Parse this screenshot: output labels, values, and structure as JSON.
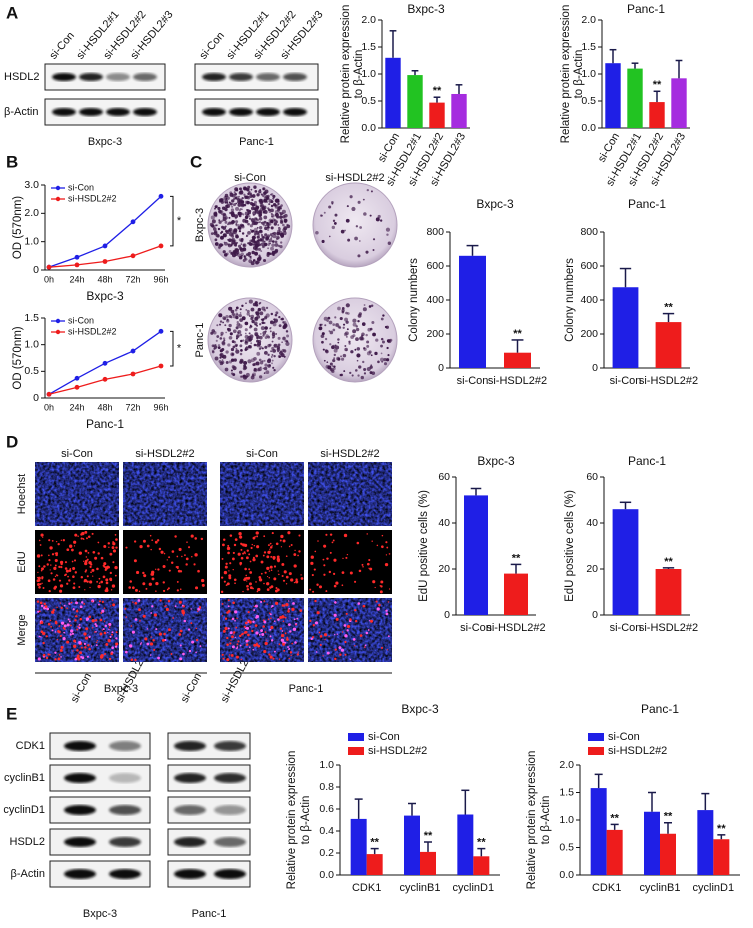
{
  "panel_labels": [
    "A",
    "B",
    "C",
    "D",
    "E"
  ],
  "blots_a": {
    "lanes": [
      "si-Con",
      "si-HSDL2#1",
      "si-HSDL2#2",
      "si-HSDL2#3"
    ],
    "proteins": [
      "HSDL2",
      "β-Actin"
    ],
    "cell_lines": [
      "Bxpc-3",
      "Panc-1"
    ]
  },
  "colony": {
    "conditions": [
      "si-Con",
      "si-HSDL2#2"
    ],
    "cell_lines": [
      "Bxpc-3",
      "Panc-1"
    ]
  },
  "edu": {
    "conditions": [
      "si-Con",
      "si-HSDL2#2"
    ],
    "stains": [
      "Hoechst",
      "EdU",
      "Merge"
    ],
    "cell_lines": [
      "Bxpc-3",
      "Panc-1"
    ]
  },
  "blots_e": {
    "lanes": [
      "si-Con",
      "si-HSDL2#2"
    ],
    "proteins": [
      "CDK1",
      "cyclinB1",
      "cyclinD1",
      "HSDL2",
      "β-Actin"
    ],
    "cell_lines": [
      "Bxpc-3",
      "Panc-1"
    ]
  },
  "chart_data": [
    {
      "type": "bar",
      "title": "Bxpc-3",
      "ylabel": [
        "Relative protein expression",
        "to β-Actin"
      ],
      "categories": [
        "si-Con",
        "si-HSDL2#1",
        "si-HSDL2#2",
        "si-HSDL2#3"
      ],
      "values": [
        1.3,
        0.98,
        0.47,
        0.63
      ],
      "errors": [
        0.5,
        0.08,
        0.1,
        0.17
      ],
      "colors": [
        "#1f1fe6",
        "#22c322",
        "#ee1c1c",
        "#a52cdf"
      ],
      "annotations": [
        null,
        null,
        "**",
        null
      ],
      "ylim": [
        0,
        2
      ],
      "yticks": [
        {
          "value": 0,
          "label": "0.0"
        },
        0.5,
        {
          "value": 1,
          "label": "1.0"
        },
        1.5,
        {
          "value": 2,
          "label": "2.0"
        }
      ]
    },
    {
      "type": "bar",
      "title": "Panc-1",
      "ylabel": [
        "Relative protein expression",
        "to β-Actin"
      ],
      "categories": [
        "si-Con",
        "si-HSDL2#1",
        "si-HSDL2#2",
        "si-HSDL2#3"
      ],
      "values": [
        1.2,
        1.1,
        0.48,
        0.92
      ],
      "errors": [
        0.25,
        0.1,
        0.2,
        0.33
      ],
      "colors": [
        "#1f1fe6",
        "#22c322",
        "#ee1c1c",
        "#a52cdf"
      ],
      "annotations": [
        null,
        null,
        "**",
        null
      ],
      "ylim": [
        0,
        2
      ],
      "yticks": [
        {
          "value": 0,
          "label": "0.0"
        },
        0.5,
        {
          "value": 1,
          "label": "1.0"
        },
        1.5,
        {
          "value": 2,
          "label": "2.0"
        }
      ]
    },
    {
      "type": "line",
      "ylabel": "OD (570nm)",
      "xlabel": "Bxpc-3",
      "annotation": "*",
      "categories": [
        "0h",
        "24h",
        "48h",
        "72h",
        "96h"
      ],
      "series": [
        {
          "name": "si-Con",
          "color": "#1f1fe6",
          "values": [
            0.1,
            0.45,
            0.85,
            1.7,
            2.6
          ]
        },
        {
          "name": "si-HSDL2#2",
          "color": "#ee1c1c",
          "values": [
            0.1,
            0.18,
            0.3,
            0.5,
            0.85
          ]
        }
      ],
      "ylim": [
        0,
        3
      ],
      "yticks": [
        0,
        {
          "value": 1,
          "label": "1.0"
        },
        {
          "value": 2,
          "label": "2.0"
        },
        {
          "value": 3,
          "label": "3.0"
        }
      ]
    },
    {
      "type": "line",
      "ylabel": "OD (570nm)",
      "xlabel": "Panc-1",
      "annotation": "*",
      "categories": [
        "0h",
        "24h",
        "48h",
        "72h",
        "96h"
      ],
      "series": [
        {
          "name": "si-Con",
          "color": "#1f1fe6",
          "values": [
            0.07,
            0.37,
            0.65,
            0.88,
            1.25
          ]
        },
        {
          "name": "si-HSDL2#2",
          "color": "#ee1c1c",
          "values": [
            0.07,
            0.2,
            0.35,
            0.45,
            0.6
          ]
        }
      ],
      "ylim": [
        0,
        1.5
      ],
      "yticks": [
        0,
        0.5,
        {
          "value": 1,
          "label": "1.0"
        },
        1.5
      ]
    },
    {
      "type": "bar",
      "title": "Bxpc-3",
      "ylabel": "Colony numbers",
      "categories": [
        "si-Con",
        "si-HSDL2#2"
      ],
      "values": [
        660,
        90
      ],
      "errors": [
        60,
        75
      ],
      "colors": [
        "#1f1fe6",
        "#ee1c1c"
      ],
      "annotations": [
        null,
        "**"
      ],
      "ylim": [
        0,
        800
      ],
      "yticks": [
        0,
        200,
        400,
        600,
        800
      ]
    },
    {
      "type": "bar",
      "title": "Panc-1",
      "ylabel": "Colony numbers",
      "categories": [
        "si-Con",
        "si-HSDL2#2"
      ],
      "values": [
        475,
        270
      ],
      "errors": [
        110,
        50
      ],
      "colors": [
        "#1f1fe6",
        "#ee1c1c"
      ],
      "annotations": [
        null,
        "**"
      ],
      "ylim": [
        0,
        800
      ],
      "yticks": [
        0,
        200,
        400,
        600,
        800
      ]
    },
    {
      "type": "bar",
      "title": "Bxpc-3",
      "ylabel": "EdU positive cells (%)",
      "categories": [
        "si-Con",
        "si-HSDL2#2"
      ],
      "values": [
        52,
        18
      ],
      "errors": [
        3,
        4
      ],
      "colors": [
        "#1f1fe6",
        "#ee1c1c"
      ],
      "annotations": [
        null,
        "**"
      ],
      "ylim": [
        0,
        60
      ],
      "yticks": [
        0,
        20,
        40,
        60
      ]
    },
    {
      "type": "bar",
      "title": "Panc-1",
      "ylabel": "EdU positive cells (%)",
      "categories": [
        "si-Con",
        "si-HSDL2#2"
      ],
      "values": [
        46,
        20
      ],
      "errors": [
        3,
        0.5
      ],
      "colors": [
        "#1f1fe6",
        "#ee1c1c"
      ],
      "annotations": [
        null,
        "**"
      ],
      "ylim": [
        0,
        60
      ],
      "yticks": [
        0,
        20,
        40,
        60
      ]
    },
    {
      "type": "grouped_bar",
      "title": "Bxpc-3",
      "ylabel": [
        "Relative protein expression",
        "to β-Actin"
      ],
      "categories": [
        "CDK1",
        "cyclinB1",
        "cyclinD1"
      ],
      "series": [
        {
          "name": "si-Con",
          "color": "#1f1fe6",
          "values": [
            0.51,
            0.54,
            0.55
          ],
          "errors": [
            0.18,
            0.11,
            0.22
          ],
          "annotations": [
            null,
            null,
            null
          ]
        },
        {
          "name": "si-HSDL2#2",
          "color": "#ee1c1c",
          "values": [
            0.19,
            0.21,
            0.17
          ],
          "errors": [
            0.05,
            0.09,
            0.07
          ],
          "annotations": [
            "**",
            "**",
            "**"
          ]
        }
      ],
      "ylim": [
        0,
        1
      ],
      "yticks": [
        {
          "value": 0,
          "label": "0.0"
        },
        0.2,
        0.4,
        0.6,
        0.8,
        {
          "value": 1,
          "label": "1.0"
        }
      ]
    },
    {
      "type": "grouped_bar",
      "title": "Panc-1",
      "ylabel": [
        "Relative protein expression",
        "to β-Actin"
      ],
      "categories": [
        "CDK1",
        "cyclinB1",
        "cyclinD1"
      ],
      "series": [
        {
          "name": "si-Con",
          "color": "#1f1fe6",
          "values": [
            1.58,
            1.15,
            1.18
          ],
          "errors": [
            0.25,
            0.35,
            0.3
          ],
          "annotations": [
            null,
            null,
            null
          ]
        },
        {
          "name": "si-HSDL2#2",
          "color": "#ee1c1c",
          "values": [
            0.82,
            0.75,
            0.65
          ],
          "errors": [
            0.1,
            0.2,
            0.08
          ],
          "annotations": [
            "**",
            "**",
            "**"
          ]
        }
      ],
      "ylim": [
        0,
        2
      ],
      "yticks": [
        {
          "value": 0,
          "label": "0.0"
        },
        0.5,
        {
          "value": 1,
          "label": "1.0"
        },
        1.5,
        {
          "value": 2,
          "label": "2.0"
        }
      ]
    }
  ]
}
